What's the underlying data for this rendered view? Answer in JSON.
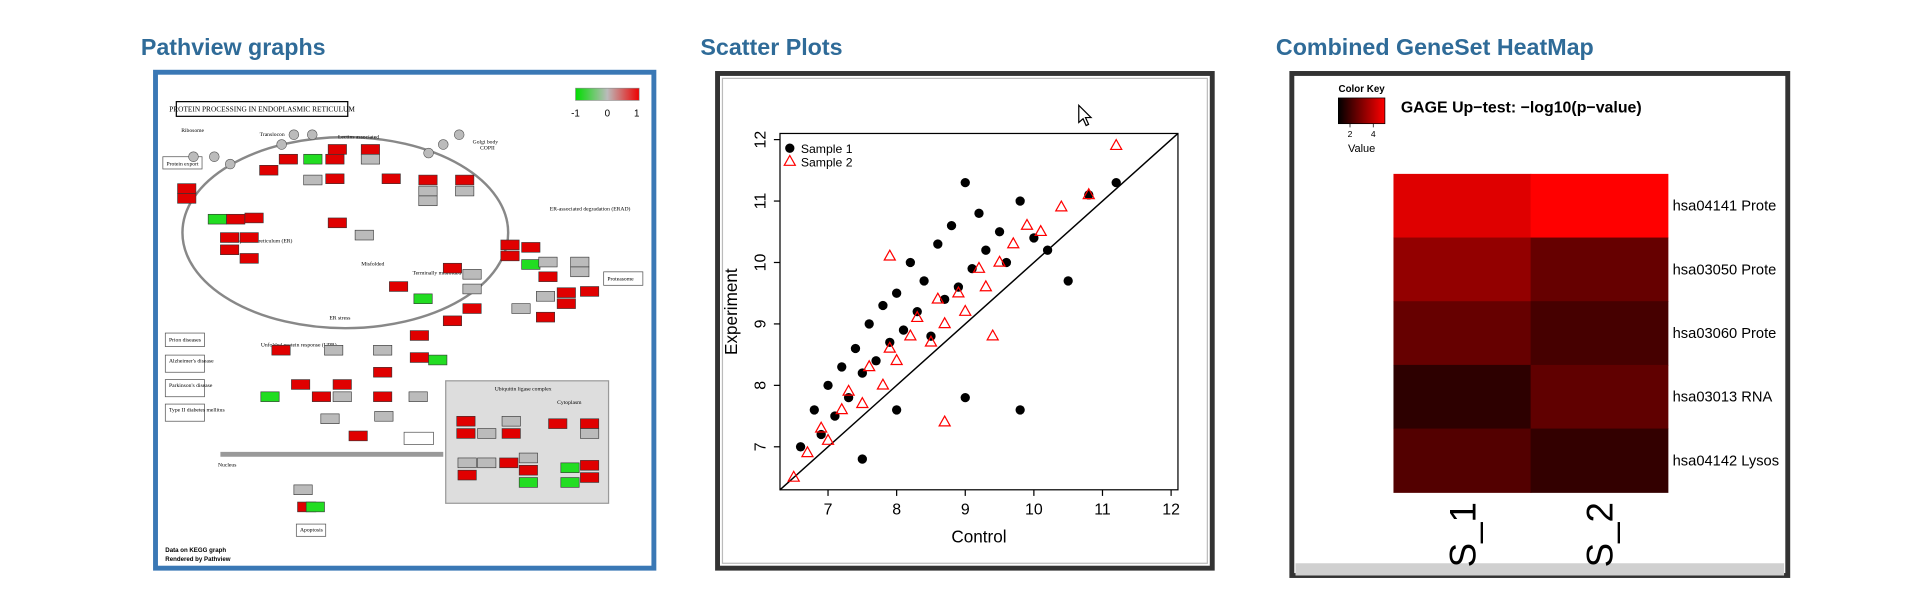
{
  "headings": [
    "Pathview graphs",
    "Scatter Plots",
    "Combined GeneSet HeatMap"
  ],
  "pathview": {
    "title": "PROTEIN PROCESSING IN ENDOPLASMIC RETICULUM",
    "legend_labels": [
      "-1",
      "0",
      "1"
    ],
    "labels": [
      "Ribosome",
      "Translocon",
      "Lectins associated",
      "Golgi body",
      "COPII",
      "Protein export",
      "Endoplasmic reticulum (ER)",
      "ER-associated degradation (ERAD)",
      "Proteasome",
      "Unfolded protein response (UPR)",
      "ER stress",
      "Prion diseases",
      "Alzheimer's disease",
      "Parkinson's disease",
      "Type II diabetes mellitus",
      "Nucleus",
      "Apoptosis",
      "Ubiquitin ligase complex",
      "Cytoplasm",
      "Misfolded",
      "Terminally misfolded"
    ],
    "footer": [
      "Data on KEGG graph",
      "Rendered by Pathview"
    ]
  },
  "chart_data": [
    {
      "type": "scatter",
      "x_label": "Control",
      "y_label": "Experiment",
      "xlim": [
        6.3,
        12.1
      ],
      "ylim": [
        6.3,
        12.1
      ],
      "xticks": [
        7,
        8,
        9,
        10,
        11,
        12
      ],
      "yticks": [
        7,
        8,
        9,
        10,
        11,
        12
      ],
      "diagonal": true,
      "legend": "top-left",
      "series": [
        {
          "name": "Sample 1",
          "color": "#000000",
          "marker": "circle",
          "x": [
            6.6,
            6.8,
            6.9,
            7.0,
            7.1,
            7.2,
            7.3,
            7.4,
            7.5,
            7.6,
            7.7,
            7.8,
            7.9,
            8.0,
            8.1,
            8.2,
            8.3,
            8.4,
            8.5,
            8.6,
            8.7,
            8.8,
            8.9,
            9.0,
            9.1,
            9.2,
            9.3,
            9.5,
            9.6,
            9.8,
            10.0,
            10.2,
            10.5,
            10.8,
            11.2,
            9.8,
            9.0,
            8.0,
            7.5
          ],
          "values": [
            7.0,
            7.6,
            7.2,
            8.0,
            7.5,
            8.3,
            7.8,
            8.6,
            8.2,
            9.0,
            8.4,
            9.3,
            8.7,
            9.5,
            8.9,
            10.0,
            9.2,
            9.7,
            8.8,
            10.3,
            9.4,
            10.6,
            9.6,
            11.3,
            9.9,
            10.8,
            10.2,
            10.5,
            10.0,
            11.0,
            10.4,
            10.2,
            9.7,
            11.1,
            11.3,
            7.6,
            7.8,
            7.6,
            6.8
          ]
        },
        {
          "name": "Sample 2",
          "color": "#ff0000",
          "marker": "triangle",
          "x": [
            6.5,
            6.7,
            6.9,
            7.0,
            7.2,
            7.3,
            7.5,
            7.6,
            7.8,
            7.9,
            8.0,
            8.2,
            8.3,
            8.5,
            8.6,
            8.7,
            8.9,
            9.0,
            9.2,
            9.3,
            9.5,
            9.7,
            9.9,
            10.1,
            10.4,
            10.8,
            11.2,
            7.9,
            8.7,
            9.4
          ],
          "values": [
            6.5,
            6.9,
            7.3,
            7.1,
            7.6,
            7.9,
            7.7,
            8.3,
            8.0,
            8.6,
            8.4,
            8.8,
            9.1,
            8.7,
            9.4,
            9.0,
            9.5,
            9.2,
            9.9,
            9.6,
            10.0,
            10.3,
            10.6,
            10.5,
            10.9,
            11.1,
            11.9,
            10.1,
            7.4,
            8.8
          ]
        }
      ]
    },
    {
      "type": "heatmap",
      "title": "GAGE Up−test: −log10(p−value)",
      "color_key_title": "Color Key",
      "color_key_label": "Value",
      "color_key_ticks": [
        2,
        4
      ],
      "zlim": [
        1,
        5
      ],
      "low_color": "#000000",
      "high_color": "#ff0000",
      "rows": [
        "hsa04141 Prote",
        "hsa03050 Prote",
        "hsa03060 Prote",
        "hsa03013 RNA",
        "hsa04142 Lysos"
      ],
      "columns": [
        "S_1",
        "S_2"
      ],
      "values": [
        [
          4.5,
          5.0
        ],
        [
          3.3,
          2.6
        ],
        [
          2.6,
          2.1
        ],
        [
          1.7,
          2.5
        ],
        [
          2.3,
          1.8
        ]
      ]
    }
  ]
}
